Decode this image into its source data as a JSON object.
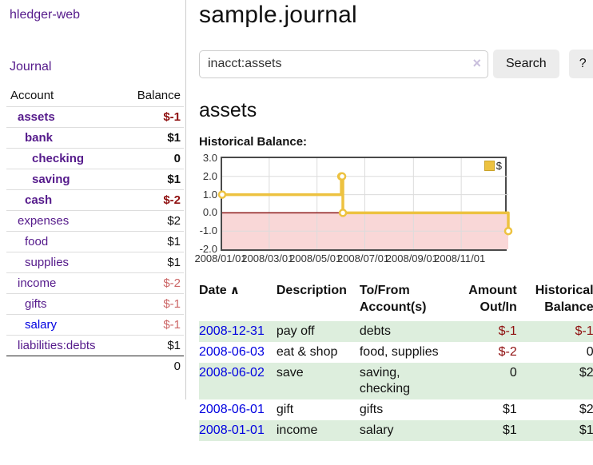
{
  "app": {
    "brand": "hledger-web"
  },
  "nav": {
    "journal": "Journal"
  },
  "sidebar": {
    "accounts": {
      "headers": [
        "Account",
        "Balance"
      ],
      "rows": [
        {
          "label": "assets",
          "depth": 1,
          "bold": true,
          "label_color": "purple",
          "balance": "$-1",
          "balance_color": "dark-red"
        },
        {
          "label": "bank",
          "depth": 2,
          "bold": true,
          "label_color": "purple",
          "balance": "$1",
          "balance_color": "black"
        },
        {
          "label": "checking",
          "depth": 3,
          "bold": true,
          "label_color": "purple",
          "balance": "0",
          "balance_color": "black"
        },
        {
          "label": "saving",
          "depth": 3,
          "bold": true,
          "label_color": "purple",
          "balance": "$1",
          "balance_color": "black"
        },
        {
          "label": "cash",
          "depth": 2,
          "bold": true,
          "label_color": "purple",
          "balance": "$-2",
          "balance_color": "dark-red"
        },
        {
          "label": "expenses",
          "depth": 1,
          "bold": false,
          "label_color": "purple",
          "balance": "$2",
          "balance_color": "black"
        },
        {
          "label": "food",
          "depth": 2,
          "bold": false,
          "label_color": "purple",
          "balance": "$1",
          "balance_color": "black"
        },
        {
          "label": "supplies",
          "depth": 2,
          "bold": false,
          "label_color": "purple",
          "balance": "$1",
          "balance_color": "black"
        },
        {
          "label": "income",
          "depth": 1,
          "bold": false,
          "label_color": "purple",
          "balance": "$-2",
          "balance_color": "light-red"
        },
        {
          "label": "gifts",
          "depth": 2,
          "bold": false,
          "label_color": "purple",
          "balance": "$-1",
          "balance_color": "light-red"
        },
        {
          "label": "salary",
          "depth": 2,
          "bold": false,
          "label_color": "blue",
          "balance": "$-1",
          "balance_color": "light-red"
        },
        {
          "label": "liabilities:debts",
          "depth": 1,
          "bold": false,
          "label_color": "purple",
          "balance": "$1",
          "balance_color": "black"
        }
      ],
      "total": "0"
    }
  },
  "main": {
    "title": "sample.journal",
    "search": {
      "value": "inacct:assets",
      "clear_icon": "×",
      "button_label": "Search",
      "help_label": "?"
    },
    "account_heading": "assets"
  },
  "chart_data": {
    "type": "line",
    "step": true,
    "title": "Historical Balance:",
    "legend": "$",
    "legend_position": "top-right",
    "grid": true,
    "series": [
      {
        "name": "$",
        "color": "#edc240",
        "points": [
          [
            "2008-01-01",
            1
          ],
          [
            "2008-06-01",
            2
          ],
          [
            "2008-06-02",
            2
          ],
          [
            "2008-06-03",
            0
          ],
          [
            "2008-12-31",
            -1
          ]
        ]
      }
    ],
    "x_range": [
      "2008-01-01",
      "2008-12-31"
    ],
    "y_range": [
      -2,
      3
    ],
    "y_ticks": [
      "3.0",
      "2.0",
      "1.0",
      "0.0",
      "-1.0",
      "-2.0"
    ],
    "x_ticks": [
      {
        "label": "2008/01/01",
        "date": "2008-01-01"
      },
      {
        "label": "2008/03/01",
        "date": "2008-03-01"
      },
      {
        "label": "2008/05/01",
        "date": "2008-05-01"
      },
      {
        "label": "2008/07/01",
        "date": "2008-07-01"
      },
      {
        "label": "2008/09/01",
        "date": "2008-09-01"
      },
      {
        "label": "2008/11/01",
        "date": "2008-11-01"
      }
    ],
    "negative_fill": "#f9d7d7",
    "zero_line_color": "#8c1717",
    "grid_color": "#dcdcdc",
    "marker_fill": "#ffffff"
  },
  "table": {
    "headers": [
      "Date",
      "Description",
      "To/From Account(s)",
      "Amount Out/In",
      "Historical Balance"
    ],
    "sort_icon": "∧",
    "rows": [
      {
        "date": "2008-12-31",
        "description": "pay off",
        "accounts": "debts",
        "amount": "$-1",
        "amount_neg": true,
        "balance": "$-1",
        "balance_neg": true
      },
      {
        "date": "2008-06-03",
        "description": "eat & shop",
        "accounts": "food, supplies",
        "amount": "$-2",
        "amount_neg": true,
        "balance": "0",
        "balance_neg": false
      },
      {
        "date": "2008-06-02",
        "description": "save",
        "accounts": "saving,\nchecking",
        "amount": "0",
        "amount_neg": false,
        "balance": "$2",
        "balance_neg": false
      },
      {
        "date": "2008-06-01",
        "description": "gift",
        "accounts": "gifts",
        "amount": "$1",
        "amount_neg": false,
        "balance": "$2",
        "balance_neg": false
      },
      {
        "date": "2008-01-01",
        "description": "income",
        "accounts": "salary",
        "amount": "$1",
        "amount_neg": false,
        "balance": "$1",
        "balance_neg": false
      }
    ]
  },
  "colors": {
    "accent_purple": "#551a8b",
    "link_blue": "#0000e0",
    "negative_dark": "#8f1010",
    "negative_light": "#cc6666",
    "row_stripe_green": "#ddeedd",
    "chart_gold": "#edc240",
    "chart_negative_fill": "#f9d7d7",
    "zero_line": "#8c1717"
  }
}
